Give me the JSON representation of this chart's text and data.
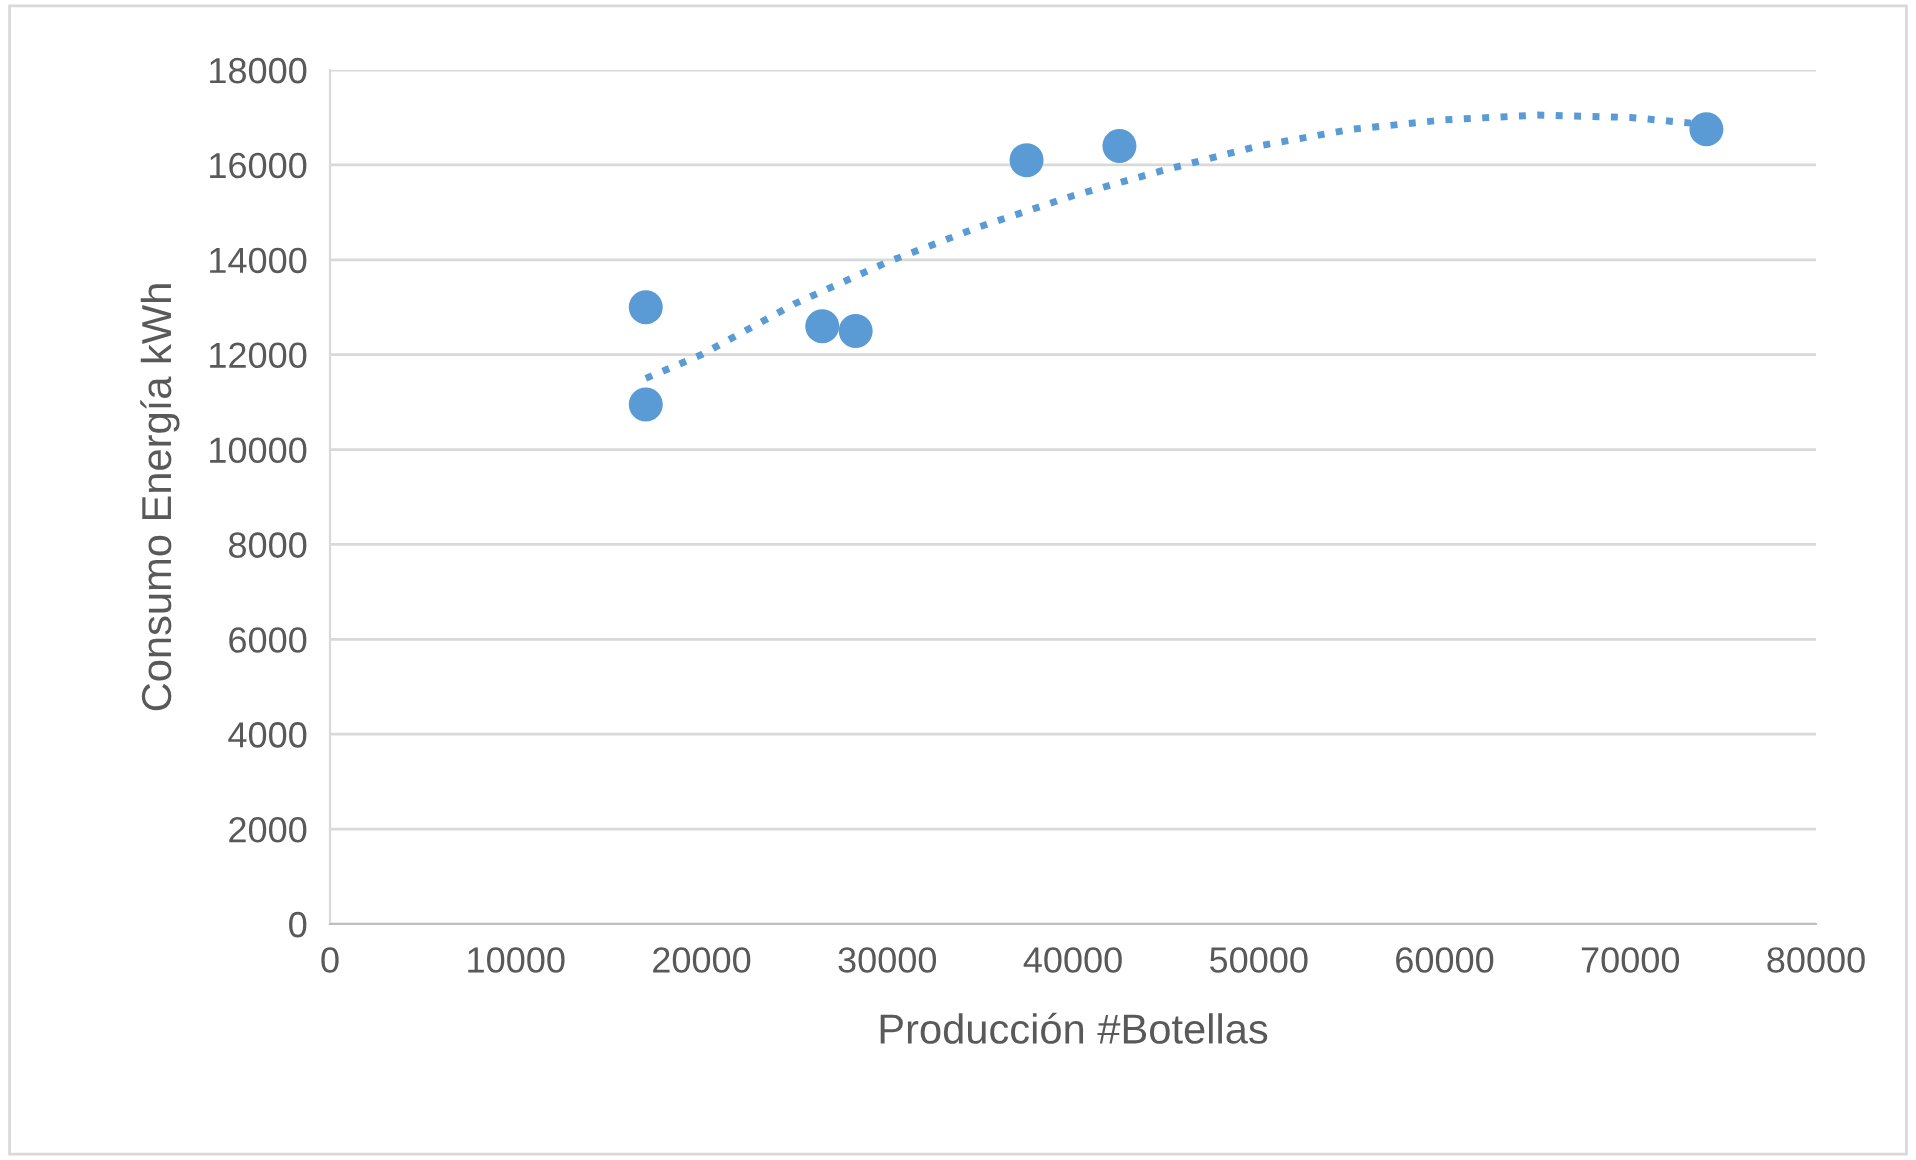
{
  "chart_data": {
    "type": "scatter",
    "xlabel": "Producción #Botellas",
    "ylabel": "Consumo Energía kWh",
    "series": [
      {
        "color": "#5b9bd5",
        "x": [
          17000,
          17000,
          26500,
          28300,
          37500,
          42500,
          74100
        ],
        "values": [
          13000,
          10950,
          12600,
          12500,
          16100,
          16400,
          16750
        ],
        "marker": "circle"
      },
      {
        "type": "line",
        "color": "#5b9bd5",
        "line_style": "dotted",
        "marker": "none",
        "x": [
          17000,
          20000,
          25000,
          30000,
          35000,
          40000,
          45000,
          50000,
          55000,
          60000,
          65000,
          70000,
          74100
        ],
        "values": [
          11500,
          12000,
          13070,
          13950,
          14700,
          15350,
          15900,
          16400,
          16750,
          16950,
          17050,
          17000,
          16850
        ]
      }
    ],
    "xlim": [
      0,
      80000
    ],
    "xticks": [
      0,
      10000,
      20000,
      30000,
      40000,
      50000,
      60000,
      70000,
      80000
    ],
    "ylim": [
      0,
      18000
    ],
    "yticks": [
      0,
      2000,
      4000,
      6000,
      8000,
      10000,
      12000,
      14000,
      16000,
      18000
    ],
    "grid": "y",
    "legend": false
  }
}
